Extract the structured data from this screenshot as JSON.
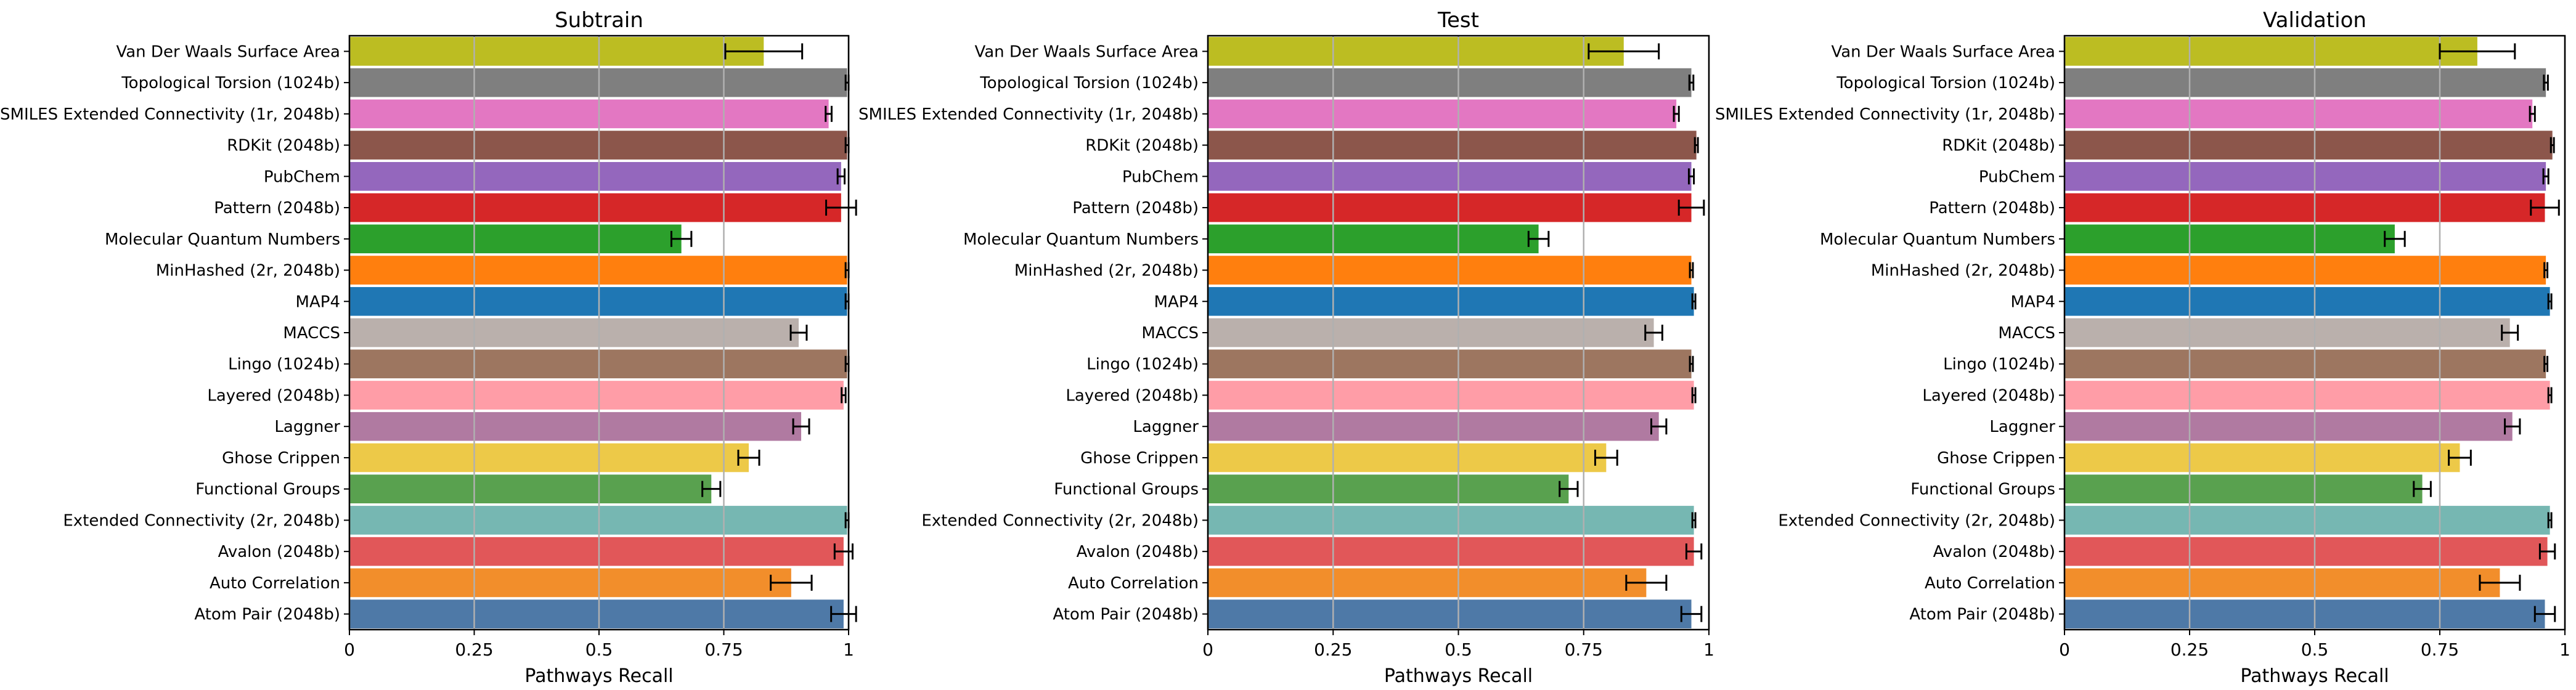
{
  "chart_data": [
    {
      "type": "bar",
      "orientation": "horizontal",
      "title": "Subtrain",
      "xlabel": "Pathways Recall",
      "xlim": [
        0,
        1
      ],
      "xticks": [
        "0",
        "0.25",
        "0.5",
        "0.75",
        "1"
      ],
      "grid": "vertical",
      "categories": [
        "Van Der Waals Surface Area",
        "Topological Torsion (1024b)",
        "SMILES Extended Connectivity (1r, 2048b)",
        "RDKit (2048b)",
        "PubChem",
        "Pattern (2048b)",
        "Molecular Quantum Numbers",
        "MinHashed (2r, 2048b)",
        "MAP4",
        "MACCS",
        "Lingo (1024b)",
        "Layered (2048b)",
        "Laggner",
        "Ghose Crippen",
        "Functional Groups",
        "Extended Connectivity (2r, 2048b)",
        "Avalon (2048b)",
        "Auto Correlation",
        "Atom Pair (2048b)"
      ],
      "values": [
        0.83,
        0.997,
        0.96,
        0.997,
        0.985,
        0.985,
        0.665,
        0.997,
        0.997,
        0.9,
        0.997,
        0.99,
        0.905,
        0.8,
        0.725,
        0.997,
        0.99,
        0.885,
        0.99
      ],
      "errors": [
        0.077,
        0.003,
        0.006,
        0.003,
        0.007,
        0.03,
        0.02,
        0.003,
        0.003,
        0.016,
        0.003,
        0.004,
        0.016,
        0.021,
        0.018,
        0.003,
        0.018,
        0.041,
        0.025
      ]
    },
    {
      "type": "bar",
      "orientation": "horizontal",
      "title": "Test",
      "xlabel": "Pathways Recall",
      "xlim": [
        0,
        1
      ],
      "xticks": [
        "0",
        "0.25",
        "0.5",
        "0.75",
        "1"
      ],
      "grid": "vertical",
      "categories": [
        "Van Der Waals Surface Area",
        "Topological Torsion (1024b)",
        "SMILES Extended Connectivity (1r, 2048b)",
        "RDKit (2048b)",
        "PubChem",
        "Pattern (2048b)",
        "Molecular Quantum Numbers",
        "MinHashed (2r, 2048b)",
        "MAP4",
        "MACCS",
        "Lingo (1024b)",
        "Layered (2048b)",
        "Laggner",
        "Ghose Crippen",
        "Functional Groups",
        "Extended Connectivity (2r, 2048b)",
        "Avalon (2048b)",
        "Auto Correlation",
        "Atom Pair (2048b)"
      ],
      "values": [
        0.83,
        0.965,
        0.935,
        0.975,
        0.965,
        0.965,
        0.66,
        0.965,
        0.97,
        0.89,
        0.965,
        0.97,
        0.9,
        0.795,
        0.72,
        0.97,
        0.97,
        0.875,
        0.965
      ],
      "errors": [
        0.07,
        0.004,
        0.005,
        0.003,
        0.005,
        0.025,
        0.02,
        0.003,
        0.003,
        0.017,
        0.003,
        0.003,
        0.015,
        0.022,
        0.018,
        0.003,
        0.015,
        0.04,
        0.02
      ]
    },
    {
      "type": "bar",
      "orientation": "horizontal",
      "title": "Validation",
      "xlabel": "Pathways Recall",
      "xlim": [
        0,
        1
      ],
      "xticks": [
        "0",
        "0.25",
        "0.5",
        "0.75",
        "1"
      ],
      "grid": "vertical",
      "categories": [
        "Van Der Waals Surface Area",
        "Topological Torsion (1024b)",
        "SMILES Extended Connectivity (1r, 2048b)",
        "RDKit (2048b)",
        "PubChem",
        "Pattern (2048b)",
        "Molecular Quantum Numbers",
        "MinHashed (2r, 2048b)",
        "MAP4",
        "MACCS",
        "Lingo (1024b)",
        "Layered (2048b)",
        "Laggner",
        "Ghose Crippen",
        "Functional Groups",
        "Extended Connectivity (2r, 2048b)",
        "Avalon (2048b)",
        "Auto Correlation",
        "Atom Pair (2048b)"
      ],
      "values": [
        0.825,
        0.962,
        0.935,
        0.975,
        0.962,
        0.96,
        0.66,
        0.962,
        0.97,
        0.89,
        0.962,
        0.97,
        0.895,
        0.79,
        0.715,
        0.97,
        0.965,
        0.87,
        0.96
      ],
      "errors": [
        0.075,
        0.004,
        0.005,
        0.003,
        0.005,
        0.028,
        0.02,
        0.003,
        0.003,
        0.016,
        0.003,
        0.003,
        0.015,
        0.022,
        0.017,
        0.003,
        0.015,
        0.04,
        0.02
      ]
    }
  ],
  "colors": [
    "#bcbd22",
    "#7f7f7f",
    "#e377c2",
    "#8c564b",
    "#9467bd",
    "#d62728",
    "#2ca02c",
    "#ff7f0e",
    "#1f77b4",
    "#bab0ac",
    "#9d7660",
    "#ff9da7",
    "#b07aa1",
    "#edc948",
    "#59a14f",
    "#76b7b2",
    "#e15759",
    "#f28e2b",
    "#4e79a7"
  ]
}
